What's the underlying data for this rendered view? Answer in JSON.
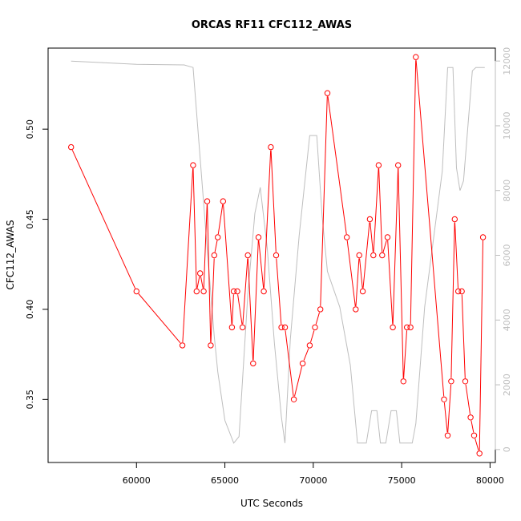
{
  "chart_data": {
    "type": "line",
    "title": "ORCAS RF11 CFC112_AWAS",
    "xlabel": "UTC Seconds",
    "ylabel": "CFC112_AWAS",
    "xlim": [
      55000,
      80300
    ],
    "ylim": [
      0.315,
      0.545
    ],
    "y2lim": [
      -400,
      12400
    ],
    "xticks": [
      60000,
      65000,
      70000,
      75000,
      80000
    ],
    "yticks": [
      0.35,
      0.4,
      0.45,
      0.5
    ],
    "y2ticks": [
      0,
      2000,
      4000,
      6000,
      8000,
      10000,
      12000
    ],
    "colors": {
      "primary": "#ff0000",
      "secondary": "#bebebe",
      "axis": "#000000"
    },
    "series": [
      {
        "axis": "left",
        "color": "#ff0000",
        "marker": "open-circle",
        "points": [
          [
            56300,
            0.49
          ],
          [
            60000,
            0.41
          ],
          [
            62600,
            0.38
          ],
          [
            63200,
            0.48
          ],
          [
            63400,
            0.41
          ],
          [
            63600,
            0.42
          ],
          [
            63800,
            0.41
          ],
          [
            64000,
            0.46
          ],
          [
            64200,
            0.38
          ],
          [
            64400,
            0.43
          ],
          [
            64600,
            0.44
          ],
          [
            64900,
            0.46
          ],
          [
            65400,
            0.39
          ],
          [
            65500,
            0.41
          ],
          [
            65700,
            0.41
          ],
          [
            66000,
            0.39
          ],
          [
            66300,
            0.43
          ],
          [
            66600,
            0.37
          ],
          [
            66900,
            0.44
          ],
          [
            67200,
            0.41
          ],
          [
            67600,
            0.49
          ],
          [
            67900,
            0.43
          ],
          [
            68200,
            0.39
          ],
          [
            68400,
            0.39
          ],
          [
            68900,
            0.35
          ],
          [
            69400,
            0.37
          ],
          [
            69800,
            0.38
          ],
          [
            70100,
            0.39
          ],
          [
            70400,
            0.4
          ],
          [
            70800,
            0.52
          ],
          [
            71900,
            0.44
          ],
          [
            72400,
            0.4
          ],
          [
            72600,
            0.43
          ],
          [
            72800,
            0.41
          ],
          [
            73200,
            0.45
          ],
          [
            73400,
            0.43
          ],
          [
            73700,
            0.48
          ],
          [
            73900,
            0.43
          ],
          [
            74200,
            0.44
          ],
          [
            74500,
            0.39
          ],
          [
            74800,
            0.48
          ],
          [
            75100,
            0.36
          ],
          [
            75300,
            0.39
          ],
          [
            75500,
            0.39
          ],
          [
            75800,
            0.54
          ],
          [
            77400,
            0.35
          ],
          [
            77600,
            0.33
          ],
          [
            77800,
            0.36
          ],
          [
            78000,
            0.45
          ],
          [
            78200,
            0.41
          ],
          [
            78400,
            0.41
          ],
          [
            78600,
            0.36
          ],
          [
            78900,
            0.34
          ],
          [
            79100,
            0.33
          ],
          [
            79400,
            0.32
          ],
          [
            79600,
            0.44
          ]
        ]
      },
      {
        "axis": "right",
        "color": "#bebebe",
        "marker": "none",
        "points": [
          [
            56300,
            12000
          ],
          [
            60000,
            11900
          ],
          [
            62700,
            11880
          ],
          [
            63200,
            11800
          ],
          [
            63600,
            9000
          ],
          [
            64000,
            6200
          ],
          [
            64400,
            3500
          ],
          [
            64600,
            2400
          ],
          [
            65000,
            900
          ],
          [
            65500,
            200
          ],
          [
            65800,
            400
          ],
          [
            66300,
            4800
          ],
          [
            66700,
            7300
          ],
          [
            67000,
            8100
          ],
          [
            67400,
            6200
          ],
          [
            67800,
            3300
          ],
          [
            68200,
            1000
          ],
          [
            68400,
            200
          ],
          [
            68700,
            3400
          ],
          [
            69200,
            6600
          ],
          [
            69800,
            9700
          ],
          [
            70200,
            9700
          ],
          [
            70500,
            7200
          ],
          [
            70800,
            5500
          ],
          [
            71500,
            4400
          ],
          [
            72100,
            2600
          ],
          [
            72500,
            200
          ],
          [
            73000,
            200
          ],
          [
            73300,
            1200
          ],
          [
            73600,
            1200
          ],
          [
            73800,
            200
          ],
          [
            74100,
            200
          ],
          [
            74400,
            1200
          ],
          [
            74700,
            1200
          ],
          [
            74900,
            200
          ],
          [
            75600,
            200
          ],
          [
            75800,
            800
          ],
          [
            76300,
            4400
          ],
          [
            77300,
            8600
          ],
          [
            77600,
            11800
          ],
          [
            77900,
            11800
          ],
          [
            78100,
            8700
          ],
          [
            78300,
            8000
          ],
          [
            78500,
            8300
          ],
          [
            79000,
            11700
          ],
          [
            79200,
            11800
          ],
          [
            79700,
            11800
          ]
        ]
      }
    ]
  }
}
